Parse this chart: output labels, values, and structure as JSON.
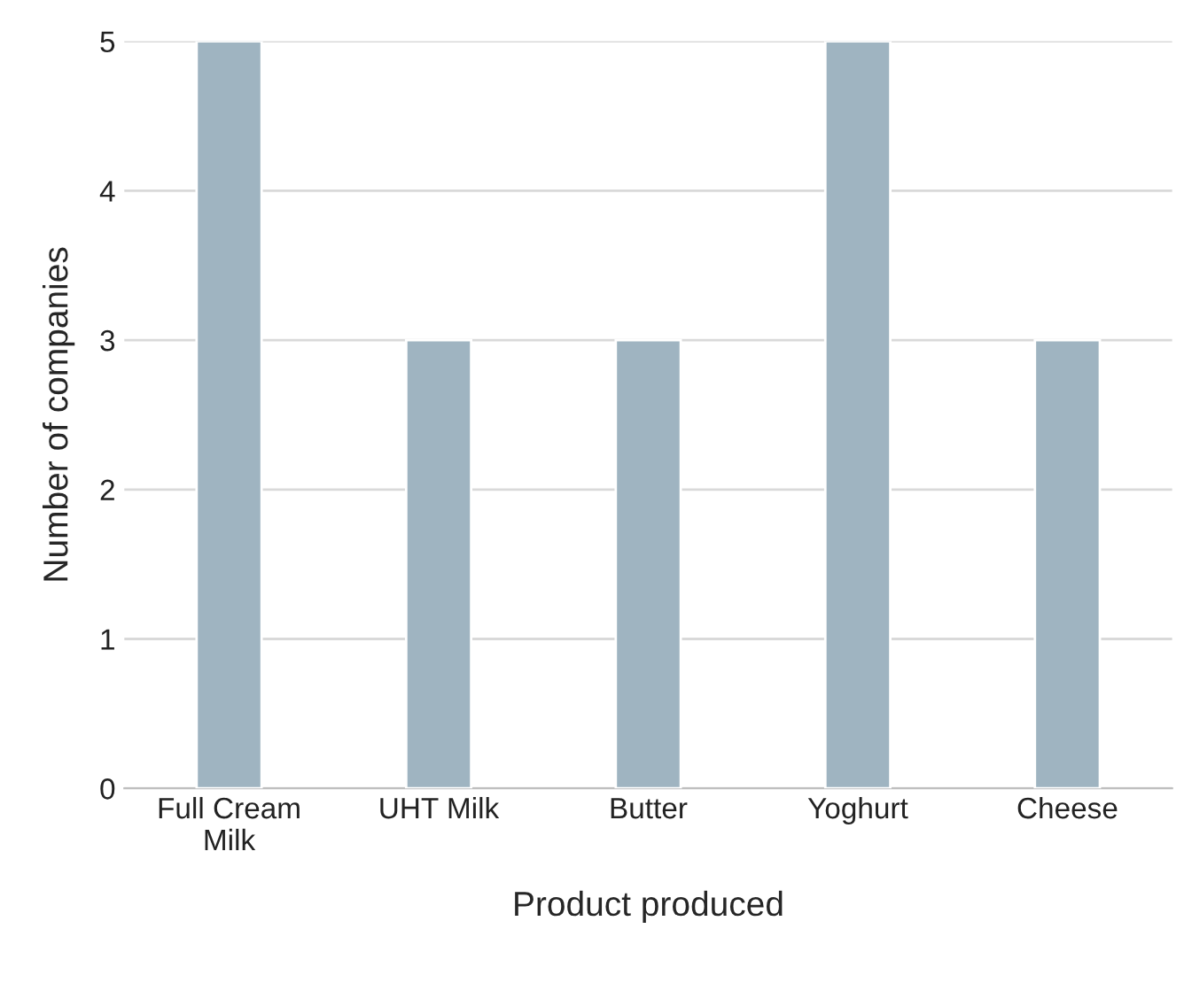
{
  "chart_data": {
    "type": "bar",
    "xlabel": "Product produced",
    "ylabel": "Number of companies",
    "categories": [
      "Full Cream\nMilk",
      "UHT Milk",
      "Butter",
      "Yoghurt",
      "Cheese"
    ],
    "values": [
      5,
      3,
      3,
      5,
      3
    ],
    "color": "#9fb4c1",
    "ylim": [
      0,
      5
    ],
    "yticks": [
      0,
      1,
      2,
      3,
      4,
      5
    ],
    "grid": "y"
  }
}
